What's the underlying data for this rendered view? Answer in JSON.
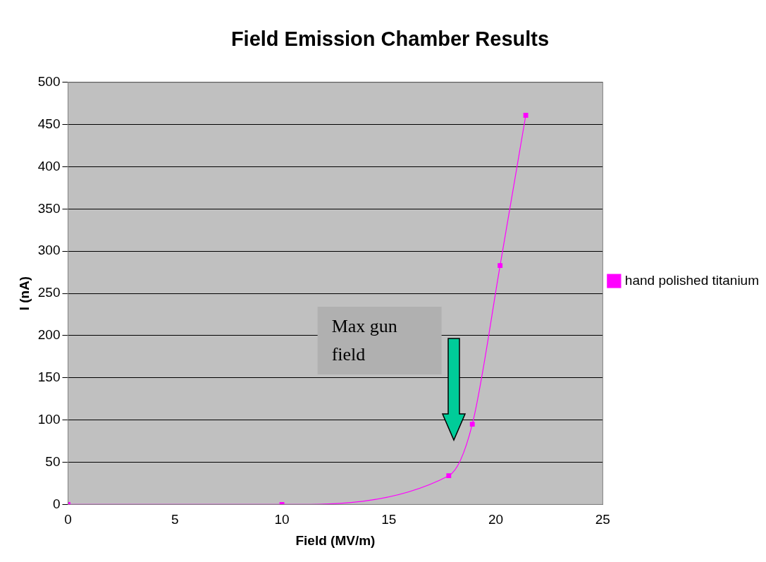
{
  "chart_data": {
    "type": "line",
    "title": "Field Emission Chamber Results",
    "xlabel": "Field (MV/m)",
    "ylabel": "I (nA)",
    "x": [
      0,
      10,
      17.8,
      18.9,
      20.2,
      21.4
    ],
    "series": [
      {
        "name": "hand polished titanium",
        "color": "#ff00ff",
        "values": [
          0,
          0,
          34,
          95,
          283,
          461
        ]
      }
    ],
    "xlim": [
      0,
      25
    ],
    "xticks": [
      0,
      5,
      10,
      15,
      20,
      25
    ],
    "ylim": [
      0,
      500
    ],
    "yticks": [
      0,
      50,
      100,
      150,
      200,
      250,
      300,
      350,
      400,
      450,
      500
    ],
    "grid": "y",
    "legend": "right",
    "marker": "square",
    "line_style": "solid",
    "annotations": [
      "Max gun field"
    ]
  }
}
